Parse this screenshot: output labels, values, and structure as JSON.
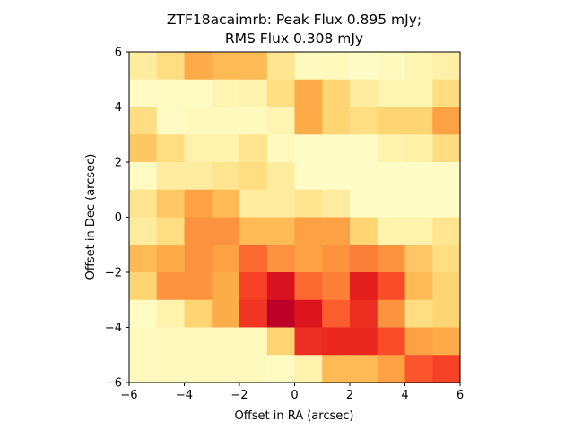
{
  "chart_data": {
    "type": "heatmap",
    "title_line1": "ZTF18acaimrb: Peak Flux 0.895 mJy;",
    "title_line2": "RMS Flux 0.308 mJy",
    "xlabel": "Offset in RA (arcsec)",
    "ylabel": "Offset in Dec (arcsec)",
    "xlim": [
      -6,
      6
    ],
    "ylim": [
      -6,
      6
    ],
    "xticks": [
      -6,
      -4,
      -2,
      0,
      2,
      4,
      6
    ],
    "yticks": [
      -6,
      -4,
      -2,
      0,
      2,
      4,
      6
    ],
    "xtick_labels": [
      "−6",
      "−4",
      "−2",
      "0",
      "2",
      "4",
      "6"
    ],
    "ytick_labels": [
      "−6",
      "−4",
      "−2",
      "0",
      "2",
      "4",
      "6"
    ],
    "colormap": [
      "#ffffcc",
      "#ffeda0",
      "#fed976",
      "#feb24c",
      "#fd8d3c",
      "#fc4e2a",
      "#e31a1c",
      "#bd0026"
    ],
    "grid": false,
    "cell_size_arcsec": 1.0,
    "rows_top_to_bottom": [
      [
        0.15,
        0.25,
        0.45,
        0.4,
        0.4,
        0.2,
        0.05,
        0.05,
        0.02,
        0.05,
        0.08,
        0.12
      ],
      [
        0.03,
        0.03,
        0.03,
        0.08,
        0.1,
        0.25,
        0.45,
        0.3,
        0.15,
        0.08,
        0.08,
        0.25
      ],
      [
        0.25,
        0.03,
        0.05,
        0.05,
        0.05,
        0.08,
        0.45,
        0.3,
        0.25,
        0.3,
        0.3,
        0.5
      ],
      [
        0.35,
        0.25,
        0.1,
        0.1,
        0.2,
        0.05,
        0.02,
        0.02,
        0.02,
        0.1,
        0.12,
        0.25
      ],
      [
        0.03,
        0.15,
        0.15,
        0.2,
        0.25,
        0.15,
        0.02,
        0.02,
        0.02,
        0.02,
        0.02,
        0.02
      ],
      [
        0.2,
        0.35,
        0.5,
        0.4,
        0.15,
        0.15,
        0.2,
        0.15,
        0.02,
        0.02,
        0.02,
        0.02
      ],
      [
        0.15,
        0.25,
        0.55,
        0.55,
        0.4,
        0.4,
        0.5,
        0.5,
        0.3,
        0.1,
        0.1,
        0.2
      ],
      [
        0.4,
        0.45,
        0.55,
        0.5,
        0.65,
        0.55,
        0.5,
        0.55,
        0.6,
        0.55,
        0.35,
        0.25
      ],
      [
        0.3,
        0.55,
        0.55,
        0.45,
        0.75,
        0.9,
        0.65,
        0.6,
        0.85,
        0.72,
        0.4,
        0.3
      ],
      [
        0.03,
        0.1,
        0.3,
        0.45,
        0.78,
        1.0,
        0.88,
        0.68,
        0.8,
        0.55,
        0.25,
        0.3
      ],
      [
        0.05,
        0.05,
        0.05,
        0.05,
        0.05,
        0.3,
        0.8,
        0.82,
        0.82,
        0.72,
        0.5,
        0.45
      ],
      [
        0.05,
        0.05,
        0.05,
        0.05,
        0.05,
        0.03,
        0.1,
        0.4,
        0.4,
        0.5,
        0.7,
        0.75
      ]
    ]
  }
}
